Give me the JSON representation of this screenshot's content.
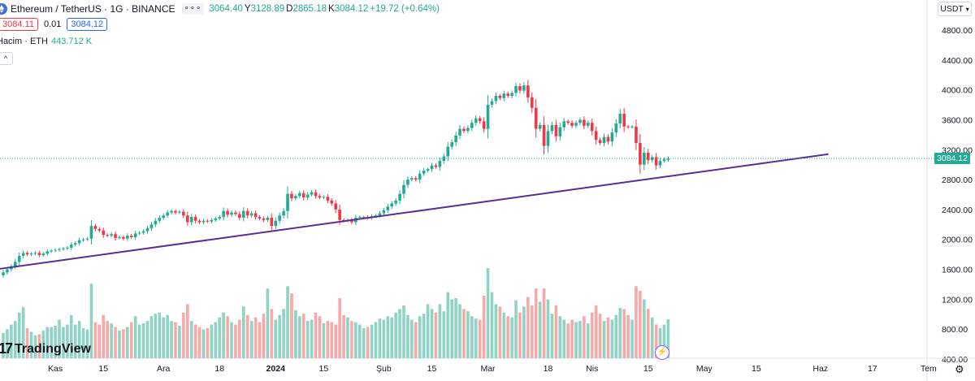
{
  "header": {
    "symbol_title": "Ethereum / TetherUS · 1G · BINANCE",
    "ohlc": [
      {
        "key": "",
        "value": "3064.40"
      },
      {
        "key": "Y",
        "value": "3128.89"
      },
      {
        "key": "D",
        "value": "2865.18"
      },
      {
        "key": "K",
        "value": "3084.12"
      }
    ],
    "change": "+19.72 (+0.64%)",
    "sell_price": "3084.11",
    "spread": "0.01",
    "buy_price": "3084.12",
    "volume_label": "Hacim · ETH",
    "volume_value": "443.712 K",
    "collapse_glyph": "^",
    "more_glyph": "∘∘∘"
  },
  "toolbar": {
    "currency": "USDT",
    "settings_icon": "gear-icon",
    "goto_icon": "lightning-icon"
  },
  "branding": {
    "logo_text": "TradingView",
    "logo_mark": "17"
  },
  "colors": {
    "up": "#22ab94",
    "down": "#f23645",
    "vol_up": "#8fd3c5",
    "vol_down": "#f7a9a7",
    "trendline": "#5b2c99",
    "last_price_line": "#22ab94",
    "axis_text": "#131722"
  },
  "chart_data": {
    "type": "candlestick",
    "title": "Ethereum / TetherUS · 1G · BINANCE",
    "last_price_label": "3084.12",
    "y_ticks": [
      "4800.00",
      "4400.00",
      "4000.00",
      "3600.00",
      "3200.00",
      "2800.00",
      "2400.00",
      "2000.00",
      "1600.00",
      "1200.00",
      "800.00",
      "400.00"
    ],
    "x_ticks": [
      "Kas",
      "15",
      "Ara",
      "18",
      "2024",
      "15",
      "Şub",
      "15",
      "Mar",
      "18",
      "Nis",
      "15",
      "May",
      "15",
      "Haz",
      "17",
      "Tem"
    ],
    "x_tick_bold": [
      "2024"
    ],
    "price_ylim": [
      1480,
      4890
    ],
    "trendline": {
      "from": {
        "date": "2023-10-23",
        "price": 1510
      },
      "to": {
        "date": "2024-05-30",
        "price": 3140
      }
    },
    "candles": [
      {
        "o": 1520,
        "c": 1560,
        "v": 420
      },
      {
        "o": 1560,
        "c": 1600,
        "v": 480
      },
      {
        "o": 1600,
        "c": 1640,
        "v": 560
      },
      {
        "o": 1640,
        "c": 1700,
        "v": 620
      },
      {
        "o": 1700,
        "c": 1780,
        "v": 760
      },
      {
        "o": 1780,
        "c": 1820,
        "v": 850
      },
      {
        "o": 1820,
        "c": 1800,
        "v": 500
      },
      {
        "o": 1800,
        "c": 1810,
        "v": 440
      },
      {
        "o": 1810,
        "c": 1820,
        "v": 380
      },
      {
        "o": 1820,
        "c": 1790,
        "v": 400
      },
      {
        "o": 1790,
        "c": 1810,
        "v": 460
      },
      {
        "o": 1810,
        "c": 1840,
        "v": 520
      },
      {
        "o": 1840,
        "c": 1850,
        "v": 520
      },
      {
        "o": 1850,
        "c": 1860,
        "v": 540
      },
      {
        "o": 1860,
        "c": 1870,
        "v": 640
      },
      {
        "o": 1870,
        "c": 1880,
        "v": 520
      },
      {
        "o": 1880,
        "c": 1890,
        "v": 560
      },
      {
        "o": 1890,
        "c": 1930,
        "v": 720
      },
      {
        "o": 1930,
        "c": 1950,
        "v": 560
      },
      {
        "o": 1950,
        "c": 1990,
        "v": 620
      },
      {
        "o": 1990,
        "c": 2000,
        "v": 500
      },
      {
        "o": 2000,
        "c": 2010,
        "v": 480
      },
      {
        "o": 2010,
        "c": 2180,
        "v": 1240
      },
      {
        "o": 2180,
        "c": 2140,
        "v": 600
      },
      {
        "o": 2140,
        "c": 2120,
        "v": 560
      },
      {
        "o": 2120,
        "c": 2060,
        "v": 720
      },
      {
        "o": 2060,
        "c": 2050,
        "v": 620
      },
      {
        "o": 2050,
        "c": 2070,
        "v": 580
      },
      {
        "o": 2070,
        "c": 2020,
        "v": 520
      },
      {
        "o": 2020,
        "c": 2030,
        "v": 460
      },
      {
        "o": 2030,
        "c": 2010,
        "v": 480
      },
      {
        "o": 2010,
        "c": 2050,
        "v": 520
      },
      {
        "o": 2050,
        "c": 2030,
        "v": 600
      },
      {
        "o": 2030,
        "c": 2080,
        "v": 700
      },
      {
        "o": 2080,
        "c": 2090,
        "v": 560
      },
      {
        "o": 2090,
        "c": 2110,
        "v": 580
      },
      {
        "o": 2110,
        "c": 2150,
        "v": 620
      },
      {
        "o": 2150,
        "c": 2200,
        "v": 700
      },
      {
        "o": 2200,
        "c": 2250,
        "v": 740
      },
      {
        "o": 2250,
        "c": 2290,
        "v": 760
      },
      {
        "o": 2290,
        "c": 2320,
        "v": 680
      },
      {
        "o": 2320,
        "c": 2360,
        "v": 720
      },
      {
        "o": 2360,
        "c": 2380,
        "v": 620
      },
      {
        "o": 2380,
        "c": 2360,
        "v": 600
      },
      {
        "o": 2360,
        "c": 2370,
        "v": 540
      },
      {
        "o": 2370,
        "c": 2320,
        "v": 760
      },
      {
        "o": 2320,
        "c": 2230,
        "v": 900
      },
      {
        "o": 2230,
        "c": 2300,
        "v": 620
      },
      {
        "o": 2300,
        "c": 2250,
        "v": 560
      },
      {
        "o": 2250,
        "c": 2230,
        "v": 520
      },
      {
        "o": 2230,
        "c": 2250,
        "v": 480
      },
      {
        "o": 2250,
        "c": 2240,
        "v": 500
      },
      {
        "o": 2240,
        "c": 2260,
        "v": 560
      },
      {
        "o": 2260,
        "c": 2280,
        "v": 600
      },
      {
        "o": 2280,
        "c": 2300,
        "v": 680
      },
      {
        "o": 2300,
        "c": 2380,
        "v": 760
      },
      {
        "o": 2380,
        "c": 2330,
        "v": 700
      },
      {
        "o": 2330,
        "c": 2360,
        "v": 600
      },
      {
        "o": 2360,
        "c": 2340,
        "v": 560
      },
      {
        "o": 2340,
        "c": 2290,
        "v": 640
      },
      {
        "o": 2290,
        "c": 2380,
        "v": 860
      },
      {
        "o": 2380,
        "c": 2320,
        "v": 720
      },
      {
        "o": 2320,
        "c": 2350,
        "v": 620
      },
      {
        "o": 2350,
        "c": 2300,
        "v": 680
      },
      {
        "o": 2300,
        "c": 2280,
        "v": 600
      },
      {
        "o": 2280,
        "c": 2260,
        "v": 740
      },
      {
        "o": 2260,
        "c": 2290,
        "v": 1160
      },
      {
        "o": 2290,
        "c": 2180,
        "v": 820
      },
      {
        "o": 2180,
        "c": 2250,
        "v": 640
      },
      {
        "o": 2250,
        "c": 2320,
        "v": 720
      },
      {
        "o": 2320,
        "c": 2380,
        "v": 820
      },
      {
        "o": 2380,
        "c": 2610,
        "v": 1200
      },
      {
        "o": 2610,
        "c": 2550,
        "v": 1080
      },
      {
        "o": 2550,
        "c": 2580,
        "v": 800
      },
      {
        "o": 2580,
        "c": 2620,
        "v": 700
      },
      {
        "o": 2620,
        "c": 2560,
        "v": 740
      },
      {
        "o": 2560,
        "c": 2600,
        "v": 620
      },
      {
        "o": 2600,
        "c": 2630,
        "v": 640
      },
      {
        "o": 2630,
        "c": 2580,
        "v": 760
      },
      {
        "o": 2580,
        "c": 2560,
        "v": 700
      },
      {
        "o": 2560,
        "c": 2570,
        "v": 580
      },
      {
        "o": 2570,
        "c": 2520,
        "v": 620
      },
      {
        "o": 2520,
        "c": 2480,
        "v": 600
      },
      {
        "o": 2480,
        "c": 2400,
        "v": 560
      },
      {
        "o": 2400,
        "c": 2260,
        "v": 1000
      },
      {
        "o": 2260,
        "c": 2250,
        "v": 720
      },
      {
        "o": 2250,
        "c": 2260,
        "v": 680
      },
      {
        "o": 2260,
        "c": 2230,
        "v": 620
      },
      {
        "o": 2230,
        "c": 2290,
        "v": 600
      },
      {
        "o": 2290,
        "c": 2300,
        "v": 560
      },
      {
        "o": 2300,
        "c": 2300,
        "v": 500
      },
      {
        "o": 2300,
        "c": 2290,
        "v": 520
      },
      {
        "o": 2290,
        "c": 2310,
        "v": 560
      },
      {
        "o": 2310,
        "c": 2320,
        "v": 600
      },
      {
        "o": 2320,
        "c": 2350,
        "v": 660
      },
      {
        "o": 2350,
        "c": 2390,
        "v": 640
      },
      {
        "o": 2390,
        "c": 2440,
        "v": 700
      },
      {
        "o": 2440,
        "c": 2480,
        "v": 680
      },
      {
        "o": 2480,
        "c": 2520,
        "v": 760
      },
      {
        "o": 2520,
        "c": 2610,
        "v": 820
      },
      {
        "o": 2610,
        "c": 2730,
        "v": 880
      },
      {
        "o": 2730,
        "c": 2800,
        "v": 720
      },
      {
        "o": 2800,
        "c": 2820,
        "v": 640
      },
      {
        "o": 2820,
        "c": 2800,
        "v": 600
      },
      {
        "o": 2800,
        "c": 2880,
        "v": 700
      },
      {
        "o": 2880,
        "c": 2920,
        "v": 740
      },
      {
        "o": 2920,
        "c": 2940,
        "v": 900
      },
      {
        "o": 2940,
        "c": 2990,
        "v": 820
      },
      {
        "o": 2990,
        "c": 2970,
        "v": 760
      },
      {
        "o": 2970,
        "c": 3050,
        "v": 900
      },
      {
        "o": 3050,
        "c": 3110,
        "v": 780
      },
      {
        "o": 3110,
        "c": 3240,
        "v": 1100
      },
      {
        "o": 3240,
        "c": 3300,
        "v": 980
      },
      {
        "o": 3300,
        "c": 3390,
        "v": 1000
      },
      {
        "o": 3390,
        "c": 3480,
        "v": 900
      },
      {
        "o": 3480,
        "c": 3450,
        "v": 820
      },
      {
        "o": 3450,
        "c": 3490,
        "v": 780
      },
      {
        "o": 3490,
        "c": 3560,
        "v": 700
      },
      {
        "o": 3560,
        "c": 3620,
        "v": 660
      },
      {
        "o": 3620,
        "c": 3580,
        "v": 640
      },
      {
        "o": 3580,
        "c": 3480,
        "v": 1040
      },
      {
        "o": 3480,
        "c": 3800,
        "v": 1500
      },
      {
        "o": 3800,
        "c": 3850,
        "v": 1100
      },
      {
        "o": 3850,
        "c": 3920,
        "v": 900
      },
      {
        "o": 3920,
        "c": 3890,
        "v": 860
      },
      {
        "o": 3890,
        "c": 3950,
        "v": 760
      },
      {
        "o": 3950,
        "c": 3920,
        "v": 700
      },
      {
        "o": 3920,
        "c": 3960,
        "v": 680
      },
      {
        "o": 3960,
        "c": 4050,
        "v": 960
      },
      {
        "o": 4050,
        "c": 3990,
        "v": 760
      },
      {
        "o": 3990,
        "c": 4060,
        "v": 860
      },
      {
        "o": 4060,
        "c": 3900,
        "v": 1020
      },
      {
        "o": 3900,
        "c": 3760,
        "v": 880
      },
      {
        "o": 3760,
        "c": 3480,
        "v": 1160
      },
      {
        "o": 3480,
        "c": 3530,
        "v": 940
      },
      {
        "o": 3530,
        "c": 3250,
        "v": 1160
      },
      {
        "o": 3250,
        "c": 3450,
        "v": 980
      },
      {
        "o": 3450,
        "c": 3530,
        "v": 740
      },
      {
        "o": 3530,
        "c": 3380,
        "v": 880
      },
      {
        "o": 3380,
        "c": 3500,
        "v": 700
      },
      {
        "o": 3500,
        "c": 3580,
        "v": 640
      },
      {
        "o": 3580,
        "c": 3560,
        "v": 580
      },
      {
        "o": 3560,
        "c": 3520,
        "v": 640
      },
      {
        "o": 3520,
        "c": 3560,
        "v": 600
      },
      {
        "o": 3560,
        "c": 3600,
        "v": 620
      },
      {
        "o": 3600,
        "c": 3520,
        "v": 700
      },
      {
        "o": 3520,
        "c": 3560,
        "v": 580
      },
      {
        "o": 3560,
        "c": 3450,
        "v": 760
      },
      {
        "o": 3450,
        "c": 3330,
        "v": 880
      },
      {
        "o": 3330,
        "c": 3290,
        "v": 740
      },
      {
        "o": 3290,
        "c": 3370,
        "v": 620
      },
      {
        "o": 3370,
        "c": 3310,
        "v": 680
      },
      {
        "o": 3310,
        "c": 3430,
        "v": 640
      },
      {
        "o": 3430,
        "c": 3550,
        "v": 720
      },
      {
        "o": 3550,
        "c": 3680,
        "v": 840
      },
      {
        "o": 3680,
        "c": 3510,
        "v": 820
      },
      {
        "o": 3510,
        "c": 3500,
        "v": 720
      },
      {
        "o": 3500,
        "c": 3510,
        "v": 640
      },
      {
        "o": 3510,
        "c": 3290,
        "v": 1200
      },
      {
        "o": 3290,
        "c": 3000,
        "v": 1120
      },
      {
        "o": 3000,
        "c": 3160,
        "v": 980
      },
      {
        "o": 3160,
        "c": 3060,
        "v": 820
      },
      {
        "o": 3060,
        "c": 3100,
        "v": 680
      },
      {
        "o": 3100,
        "c": 2990,
        "v": 560
      },
      {
        "o": 2990,
        "c": 3050,
        "v": 500
      },
      {
        "o": 3050,
        "c": 3070,
        "v": 560
      },
      {
        "o": 3064.4,
        "c": 3084.12,
        "v": 650
      }
    ],
    "projected_candles": 46
  }
}
